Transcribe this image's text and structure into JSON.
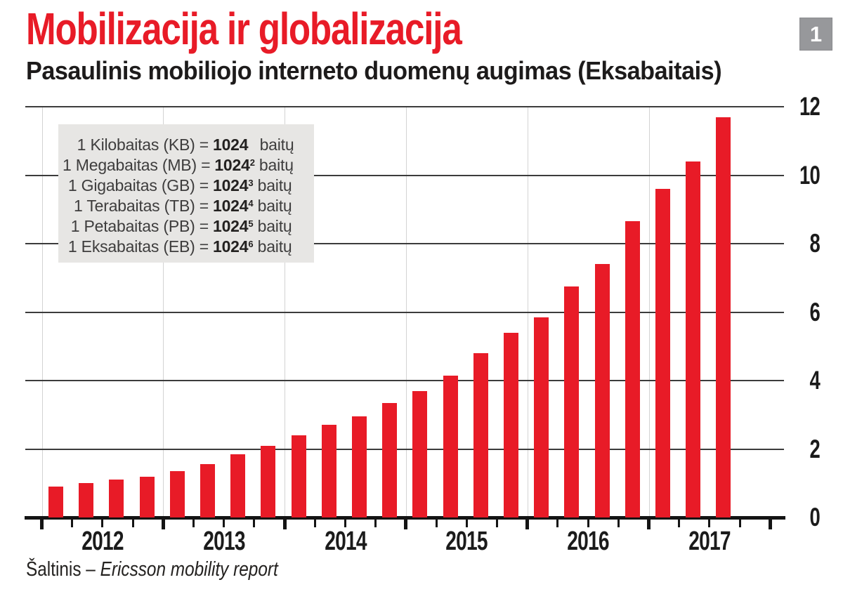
{
  "page": {
    "badge": "1"
  },
  "header": {
    "title": "Mobilizacija ir globalizacija",
    "subtitle": "Pasaulinis mobiliojo interneto duomenų augimas (Eksabaitais)"
  },
  "legend": {
    "rows": [
      {
        "label": "1 Kilobaitas (KB) =",
        "base": "1024",
        "exp": "",
        "unit": "baitų"
      },
      {
        "label": "1 Megabaitas (MB) =",
        "base": "1024",
        "exp": "2",
        "unit": "baitų"
      },
      {
        "label": "1 Gigabaitas (GB) =",
        "base": "1024",
        "exp": "3",
        "unit": "baitų"
      },
      {
        "label": "1 Terabaitas (TB) =",
        "base": "1024",
        "exp": "4",
        "unit": "baitų"
      },
      {
        "label": "1 Petabaitas (PB) =",
        "base": "1024",
        "exp": "5",
        "unit": "baitų"
      },
      {
        "label": "1 Eksabaitas (EB) =",
        "base": "1024",
        "exp": "6",
        "unit": "baitų"
      }
    ]
  },
  "source": {
    "prefix": "Šaltinis –",
    "name": "Ericsson mobility report"
  },
  "chart_data": {
    "type": "bar",
    "title": "Mobilizacija ir globalizacija",
    "subtitle": "Pasaulinis mobiliojo interneto duomenų augimas (Eksabaitais)",
    "value_unit": "Eksabaitai (EB)",
    "categories": [
      "2012",
      "2013",
      "2014",
      "2015",
      "2016",
      "2017"
    ],
    "groups": [
      {
        "year": "2012",
        "values": [
          0.9,
          1.0,
          1.1,
          1.2
        ]
      },
      {
        "year": "2013",
        "values": [
          1.35,
          1.55,
          1.85,
          2.1
        ]
      },
      {
        "year": "2014",
        "values": [
          2.4,
          2.7,
          2.95,
          3.35
        ]
      },
      {
        "year": "2015",
        "values": [
          3.7,
          4.15,
          4.8,
          5.4
        ]
      },
      {
        "year": "2016",
        "values": [
          5.85,
          6.75,
          7.4,
          8.65
        ]
      },
      {
        "year": "2017",
        "values": [
          9.6,
          10.4,
          11.7
        ]
      }
    ],
    "xlabel": "",
    "ylabel": "",
    "ylim": [
      0,
      12
    ],
    "yticks": [
      0,
      2,
      4,
      6,
      8,
      10,
      12
    ],
    "y_axis_side": "right",
    "grid": {
      "horizontal": true,
      "vertical_year_dividers": true
    },
    "bar_color": "#e81b27",
    "legend_position": "top-left"
  }
}
